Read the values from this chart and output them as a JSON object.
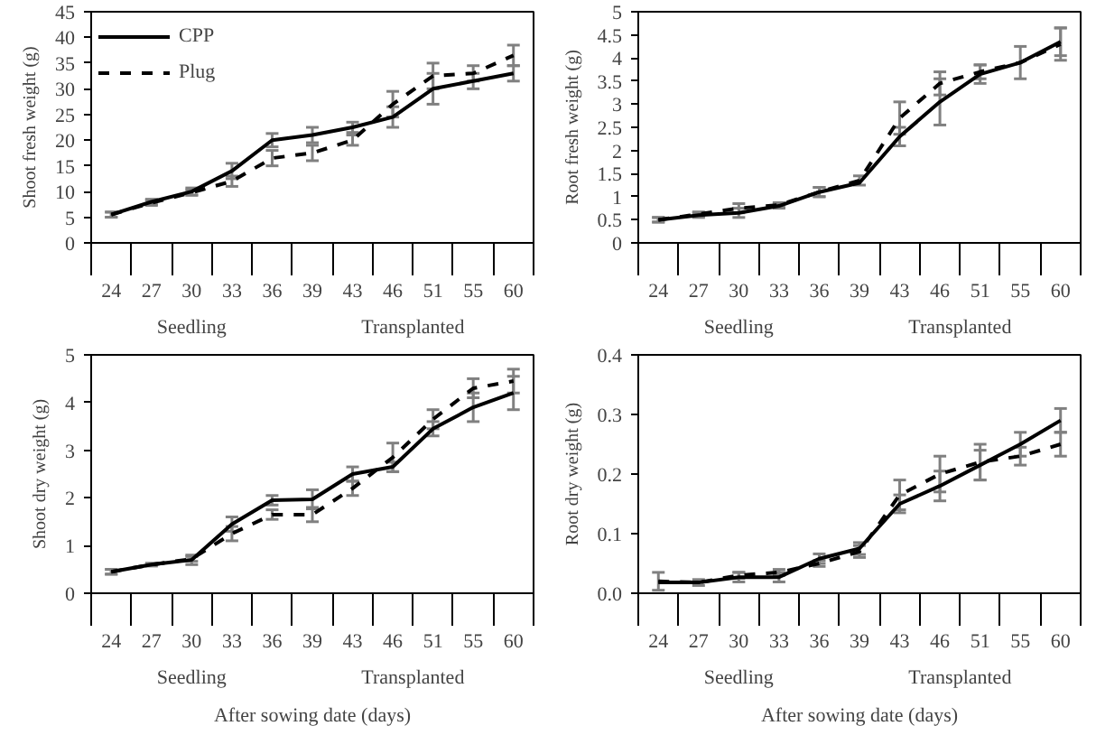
{
  "chart_data": [
    {
      "type": "line",
      "ylabel": "Shoot fresh weight (g)",
      "categories": [
        "24",
        "27",
        "30",
        "33",
        "36",
        "39",
        "43",
        "46",
        "51",
        "55",
        "60"
      ],
      "ylim": [
        0,
        45
      ],
      "yticks": [
        0,
        5,
        10,
        15,
        20,
        25,
        30,
        35,
        40,
        45
      ],
      "grid": false,
      "legend": "top left",
      "annotations": [
        "Seedling",
        "Transplanted"
      ],
      "series": [
        {
          "name": "CPP",
          "color": "#000000",
          "line_style": "solid",
          "values": [
            5.5,
            8,
            10,
            14,
            20,
            21,
            22.5,
            24.5,
            30,
            31.5,
            33
          ],
          "errors": [
            0.5,
            0.5,
            0.7,
            1.5,
            1.3,
            1.5,
            1,
            2,
            3,
            1.5,
            1.5
          ]
        },
        {
          "name": "Plug",
          "color": "#000000",
          "line_style": "dashed",
          "values": [
            5.5,
            7.8,
            9.8,
            12,
            16.5,
            17.5,
            20,
            27,
            32.5,
            33,
            36.5
          ],
          "errors": [
            0.5,
            0.5,
            0.5,
            1,
            1.5,
            1.5,
            1,
            2.5,
            2.5,
            1.5,
            2
          ]
        }
      ]
    },
    {
      "type": "line",
      "ylabel": "Root fresh weight (g)",
      "categories": [
        "24",
        "27",
        "30",
        "33",
        "36",
        "39",
        "43",
        "46",
        "51",
        "55",
        "60"
      ],
      "ylim": [
        0,
        5
      ],
      "yticks": [
        0,
        0.5,
        1,
        1.5,
        2,
        2.5,
        3,
        3.5,
        4,
        4.5,
        5
      ],
      "grid": false,
      "annotations": [
        "Seedling",
        "Transplanted"
      ],
      "series": [
        {
          "color": "#000000",
          "line_style": "solid",
          "values": [
            0.5,
            0.6,
            0.65,
            0.8,
            1.1,
            1.3,
            2.3,
            3.05,
            3.65,
            3.9,
            4.35
          ],
          "errors": [
            0.05,
            0.05,
            0.1,
            0.05,
            0.1,
            null,
            0.2,
            0.5,
            0.2,
            0.35,
            0.3
          ]
        },
        {
          "color": "#000000",
          "line_style": "dashed",
          "values": [
            0.5,
            0.62,
            0.75,
            0.82,
            1.1,
            1.35,
            2.7,
            3.45,
            3.7,
            3.9,
            4.3
          ],
          "errors": [
            0.05,
            0.05,
            0.1,
            0.05,
            0.1,
            0.1,
            0.35,
            0.25,
            0.15,
            null,
            0.35
          ]
        }
      ]
    },
    {
      "type": "line",
      "ylabel": "Shoot dry weight (g)",
      "xlabel": "After sowing date (days)",
      "categories": [
        "24",
        "27",
        "30",
        "33",
        "36",
        "39",
        "43",
        "46",
        "51",
        "55",
        "60"
      ],
      "ylim": [
        0,
        5
      ],
      "yticks": [
        0,
        1,
        2,
        3,
        4,
        5
      ],
      "grid": false,
      "annotations": [
        "Seedling",
        "Transplanted"
      ],
      "series": [
        {
          "color": "#000000",
          "line_style": "solid",
          "values": [
            0.45,
            0.6,
            0.7,
            1.45,
            1.95,
            1.97,
            2.5,
            2.65,
            3.45,
            3.9,
            4.2
          ],
          "errors": [
            0.05,
            0.03,
            0.1,
            0.15,
            0.1,
            0.2,
            0.15,
            0.1,
            0.15,
            0.3,
            0.35
          ]
        },
        {
          "color": "#000000",
          "line_style": "dashed",
          "values": [
            0.45,
            0.6,
            0.72,
            1.25,
            1.65,
            1.65,
            2.2,
            2.85,
            3.65,
            4.3,
            4.45
          ],
          "errors": [
            0.05,
            null,
            0.05,
            0.15,
            0.1,
            0.15,
            0.15,
            0.3,
            0.2,
            0.2,
            0.25
          ]
        }
      ]
    },
    {
      "type": "line",
      "ylabel": "Root dry weight (g)",
      "xlabel": "After sowing date (days)",
      "categories": [
        "24",
        "27",
        "30",
        "33",
        "36",
        "39",
        "43",
        "46",
        "51",
        "55",
        "60"
      ],
      "ylim": [
        0,
        0.4
      ],
      "yticks": [
        {
          "value": 0,
          "label": "0.0"
        },
        0.1,
        0.2,
        0.3,
        0.4
      ],
      "grid": false,
      "annotations": [
        "Seedling",
        "Transplanted"
      ],
      "series": [
        {
          "color": "#000000",
          "line_style": "solid",
          "values": [
            0.018,
            0.018,
            0.027,
            0.027,
            0.058,
            0.075,
            0.15,
            0.18,
            0.215,
            0.25,
            0.29
          ],
          "errors": [
            null,
            0.005,
            0.008,
            0.008,
            0.008,
            0.01,
            0.015,
            0.025,
            0.025,
            0.02,
            0.02
          ]
        },
        {
          "color": "#000000",
          "line_style": "dashed",
          "values": [
            0.02,
            0.018,
            0.03,
            0.035,
            0.05,
            0.07,
            0.165,
            0.2,
            0.22,
            0.23,
            0.25
          ],
          "errors": [
            0.015,
            null,
            0.005,
            0.005,
            0.005,
            0.01,
            0.025,
            0.03,
            0.03,
            0.015,
            0.02
          ]
        }
      ]
    }
  ]
}
